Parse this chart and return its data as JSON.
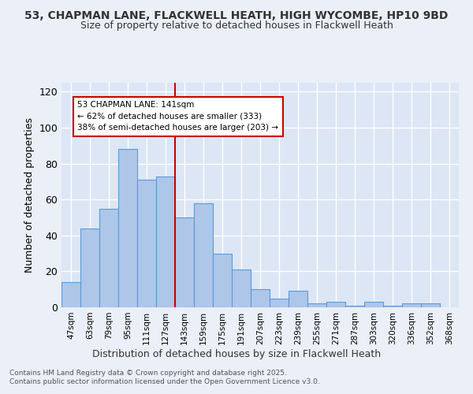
{
  "title1": "53, CHAPMAN LANE, FLACKWELL HEATH, HIGH WYCOMBE, HP10 9BD",
  "title2": "Size of property relative to detached houses in Flackwell Heath",
  "xlabel": "Distribution of detached houses by size in Flackwell Heath",
  "ylabel": "Number of detached properties",
  "categories": [
    "47sqm",
    "63sqm",
    "79sqm",
    "95sqm",
    "111sqm",
    "127sqm",
    "143sqm",
    "159sqm",
    "175sqm",
    "191sqm",
    "207sqm",
    "223sqm",
    "239sqm",
    "255sqm",
    "271sqm",
    "287sqm",
    "303sqm",
    "320sqm",
    "336sqm",
    "352sqm",
    "368sqm"
  ],
  "bar_values": [
    14,
    44,
    55,
    88,
    71,
    73,
    50,
    58,
    30,
    21,
    10,
    5,
    9,
    2,
    3,
    1,
    3,
    1,
    2,
    2,
    0
  ],
  "bar_color": "#aec6e8",
  "bar_edgecolor": "#5b9bd5",
  "highlight_line_color": "#cc0000",
  "annotation_box_edgecolor": "#cc0000",
  "annotation_box_facecolor": "#ffffff",
  "bg_color": "#eaeff8",
  "plot_bg_color": "#dce6f5",
  "grid_color": "#ffffff",
  "ylim": [
    0,
    125
  ],
  "yticks": [
    0,
    20,
    40,
    60,
    80,
    100,
    120
  ],
  "footer1": "Contains HM Land Registry data © Crown copyright and database right 2025.",
  "footer2": "Contains public sector information licensed under the Open Government Licence v3.0.",
  "annotation_line1": "53 CHAPMAN LANE: 141sqm",
  "annotation_line2": "← 62% of detached houses are smaller (333)",
  "annotation_line3": "38% of semi-detached houses are larger (203) →"
}
